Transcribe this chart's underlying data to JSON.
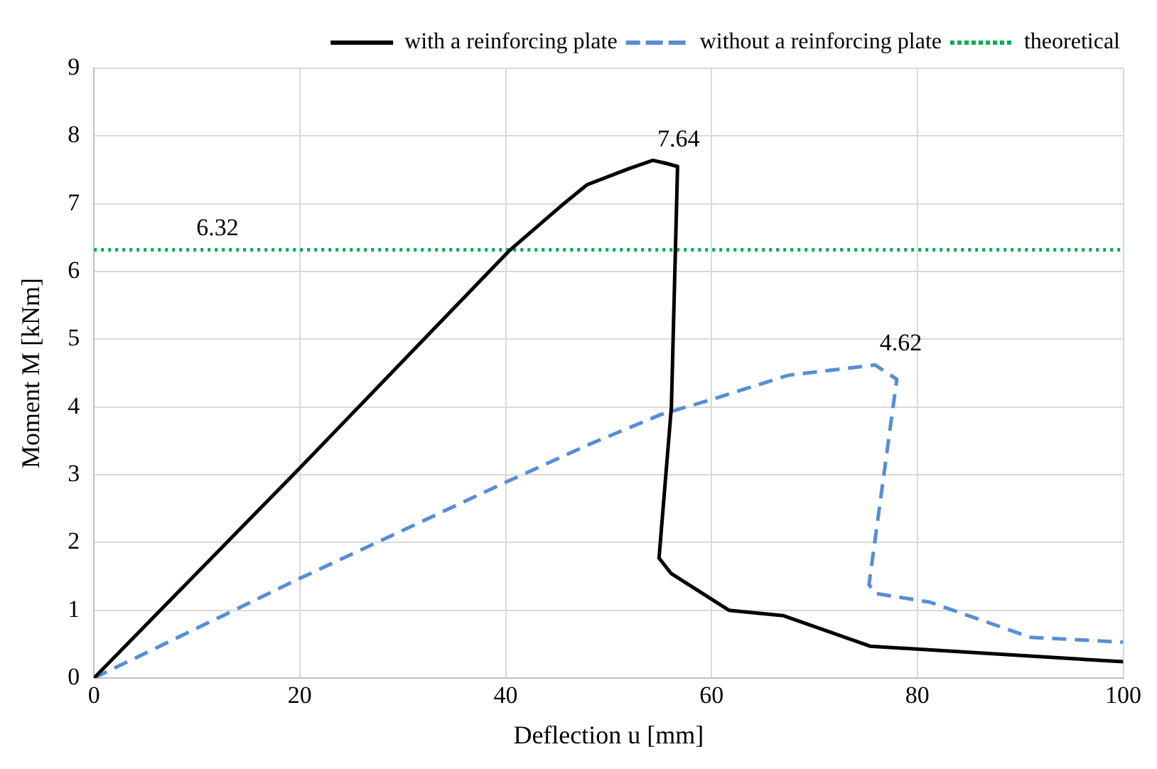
{
  "chart_data": {
    "type": "line",
    "xlabel": "Deflection u [mm]",
    "ylabel": "Moment M [kNm]",
    "xlim": [
      0,
      100
    ],
    "xticks": [
      0,
      20,
      40,
      60,
      80,
      100
    ],
    "ylim": [
      0,
      9
    ],
    "yticks": [
      0,
      1,
      2,
      3,
      4,
      5,
      6,
      7,
      8,
      9
    ],
    "grid": true,
    "legend": "top right",
    "marker": "none",
    "series": [
      {
        "name": "with a reinforcing plate",
        "color": "#000000",
        "line_style": "solid",
        "x": [
          0,
          20,
          40.3,
          45.4,
          47.9,
          52,
          54.3,
          55.5,
          56.7,
          56.1,
          54.9,
          56.1,
          61.7,
          67,
          75.4,
          100
        ],
        "values": [
          0,
          3.1,
          6.3,
          6.97,
          7.28,
          7.52,
          7.64,
          7.6,
          7.55,
          4,
          1.77,
          1.54,
          1,
          0.92,
          0.47,
          0.24
        ]
      },
      {
        "name": "without a reinforcing plate",
        "color": "#558ed5",
        "line_style": "dashed",
        "x": [
          0,
          20,
          40.3,
          48.3,
          55.1,
          60.2,
          67.5,
          75.9,
          78,
          75.3,
          75.9,
          81.2,
          91,
          100
        ],
        "values": [
          0,
          1.47,
          2.91,
          3.46,
          3.89,
          4.12,
          4.47,
          4.62,
          4.41,
          1.38,
          1.25,
          1.12,
          0.6,
          0.53
        ]
      },
      {
        "name": "theoretical",
        "color": "#00b050",
        "line_style": "dotted",
        "x": [
          0,
          100
        ],
        "values": [
          6.32,
          6.32
        ]
      }
    ],
    "annotations": [
      {
        "text": "6.32",
        "x": 12,
        "y": 6.32
      },
      {
        "text": "7.64",
        "x": 54.3,
        "y": 7.64
      },
      {
        "text": "4.62",
        "x": 75.9,
        "y": 4.62
      }
    ]
  }
}
